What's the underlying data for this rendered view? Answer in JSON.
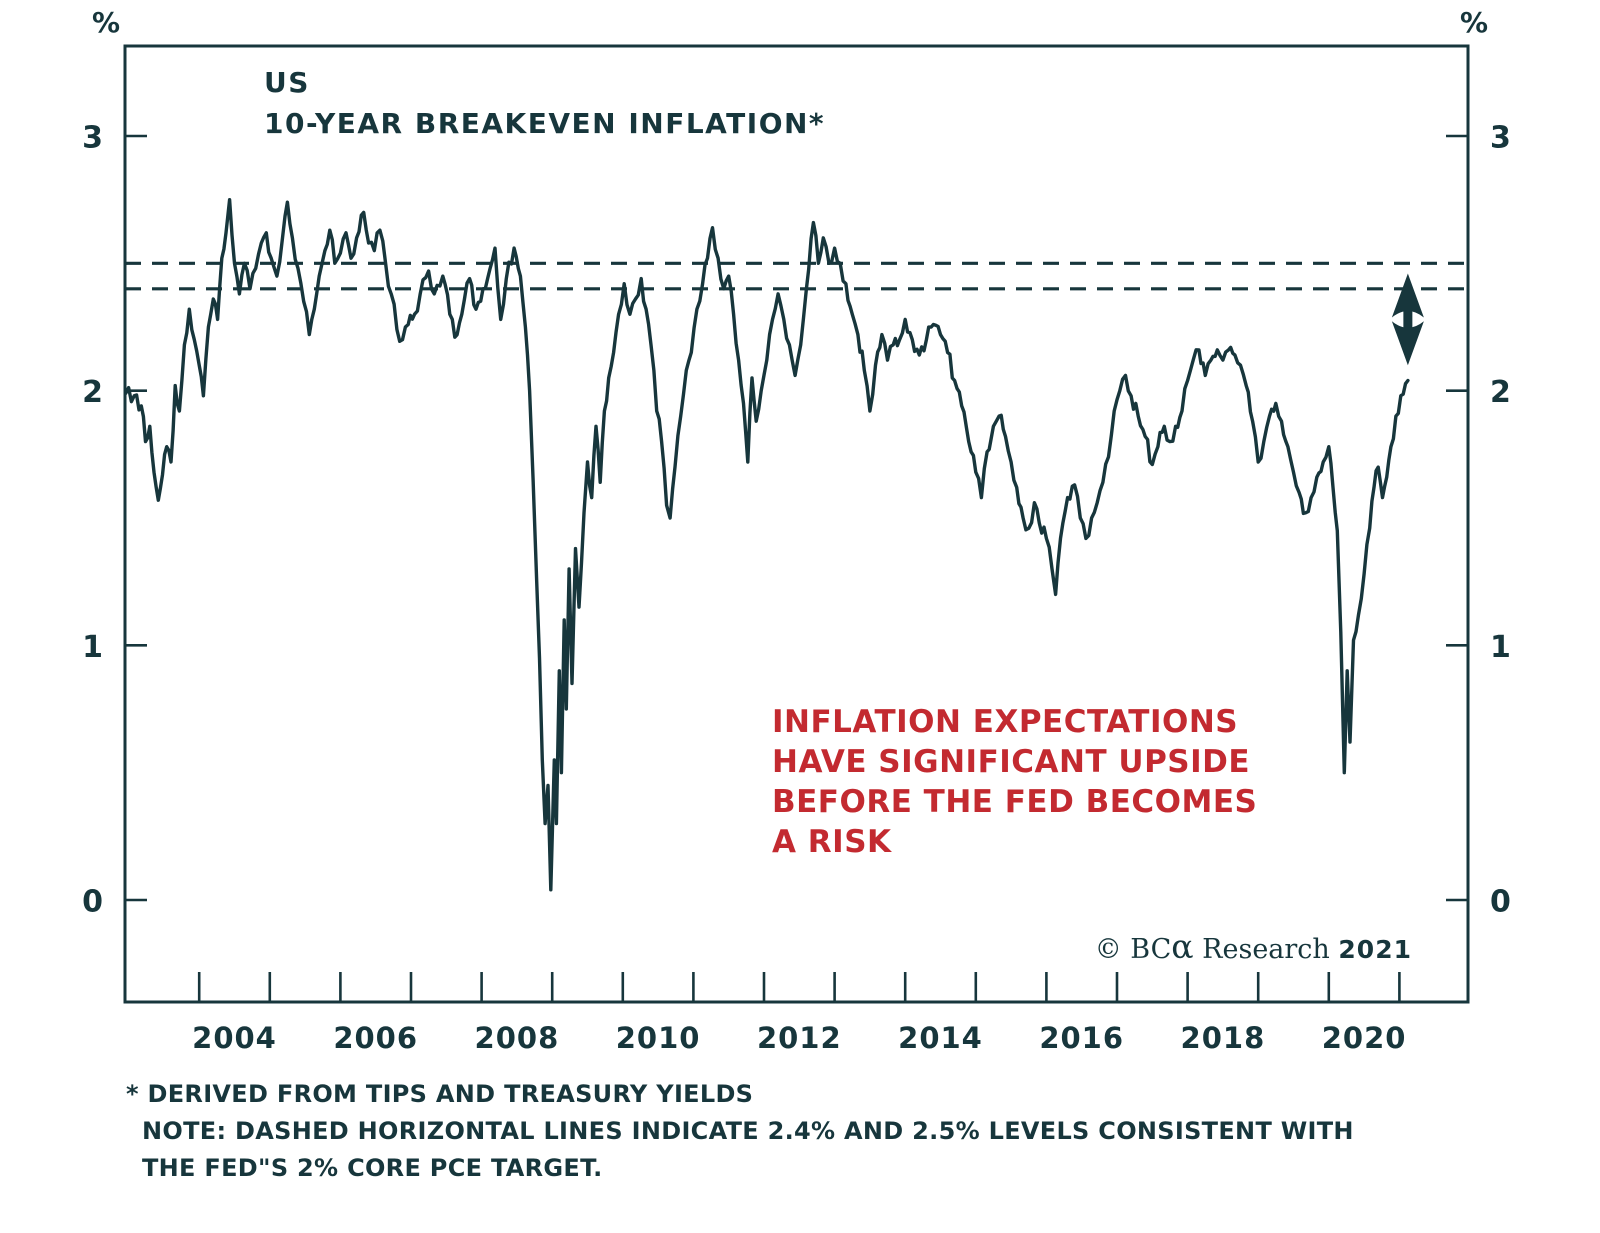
{
  "colors": {
    "line": "#17363c",
    "accent_red": "#c32a30",
    "background": "#ffffff"
  },
  "title": {
    "line1": "US",
    "line2": "10-YEAR BREAKEVEN INFLATION*"
  },
  "axis": {
    "unit_label": "%"
  },
  "annotations": {
    "note_lines": [
      "INFLATION EXPECTATIONS",
      "HAVE SIGNIFICANT UPSIDE",
      "BEFORE THE FED BECOMES",
      "A RISK"
    ],
    "credit": {
      "copyright": "© BC",
      "alpha": "α",
      "middle": " Research ",
      "year": "2021"
    },
    "footnote1": "* DERIVED FROM TIPS AND TREASURY YIELDS",
    "footnote2": "NOTE: DASHED HORIZONTAL LINES INDICATE 2.4% AND 2.5% LEVELS CONSISTENT WITH",
    "footnote3": "THE FED\"S 2% CORE PCE TARGET."
  },
  "chart_data": {
    "type": "line",
    "title": "US 10-YEAR BREAKEVEN INFLATION*",
    "xlabel": "",
    "ylabel": "%",
    "ylim": [
      -0.4,
      3.4
    ],
    "xlim": [
      2002.95,
      2021.95
    ],
    "grid": false,
    "legend": "none",
    "y_ticks": [
      0,
      1,
      2,
      3
    ],
    "x_tick_years": [
      2004,
      2005,
      2006,
      2007,
      2008,
      2009,
      2010,
      2011,
      2012,
      2013,
      2014,
      2015,
      2016,
      2017,
      2018,
      2019,
      2020,
      2021
    ],
    "x_labels": [
      2004,
      2006,
      2008,
      2010,
      2012,
      2014,
      2016,
      2018,
      2020
    ],
    "reference_lines": {
      "values": [
        2.4,
        2.5
      ],
      "style": "dashed",
      "meaning": "2.4% and 2.5% levels consistent with the Fed's 2% core PCE target"
    },
    "arrow": {
      "x_year": 2021.12,
      "from_value": 2.1,
      "to_value": 2.46,
      "type": "double-headed-vertical"
    },
    "series": [
      {
        "name": "US 10-Year Breakeven Inflation (derived from TIPS and Treasury yields)",
        "points": [
          [
            2002.96,
            1.99
          ],
          [
            2003.08,
            1.98
          ],
          [
            2003.18,
            1.94
          ],
          [
            2003.24,
            1.8
          ],
          [
            2003.3,
            1.86
          ],
          [
            2003.36,
            1.68
          ],
          [
            2003.42,
            1.57
          ],
          [
            2003.48,
            1.67
          ],
          [
            2003.54,
            1.78
          ],
          [
            2003.6,
            1.72
          ],
          [
            2003.66,
            2.02
          ],
          [
            2003.72,
            1.92
          ],
          [
            2003.79,
            2.18
          ],
          [
            2003.86,
            2.32
          ],
          [
            2003.93,
            2.2
          ],
          [
            2004.0,
            2.1
          ],
          [
            2004.06,
            1.98
          ],
          [
            2004.13,
            2.25
          ],
          [
            2004.2,
            2.36
          ],
          [
            2004.26,
            2.28
          ],
          [
            2004.32,
            2.52
          ],
          [
            2004.38,
            2.62
          ],
          [
            2004.43,
            2.75
          ],
          [
            2004.5,
            2.5
          ],
          [
            2004.57,
            2.38
          ],
          [
            2004.64,
            2.5
          ],
          [
            2004.72,
            2.4
          ],
          [
            2004.8,
            2.48
          ],
          [
            2004.88,
            2.58
          ],
          [
            2004.95,
            2.62
          ],
          [
            2005.02,
            2.52
          ],
          [
            2005.1,
            2.45
          ],
          [
            2005.18,
            2.6
          ],
          [
            2005.25,
            2.74
          ],
          [
            2005.32,
            2.6
          ],
          [
            2005.4,
            2.48
          ],
          [
            2005.48,
            2.35
          ],
          [
            2005.56,
            2.22
          ],
          [
            2005.63,
            2.32
          ],
          [
            2005.7,
            2.45
          ],
          [
            2005.78,
            2.55
          ],
          [
            2005.85,
            2.63
          ],
          [
            2005.92,
            2.5
          ],
          [
            2006.0,
            2.54
          ],
          [
            2006.08,
            2.62
          ],
          [
            2006.15,
            2.52
          ],
          [
            2006.23,
            2.6
          ],
          [
            2006.33,
            2.7
          ],
          [
            2006.4,
            2.58
          ],
          [
            2006.48,
            2.55
          ],
          [
            2006.56,
            2.63
          ],
          [
            2006.64,
            2.5
          ],
          [
            2006.72,
            2.38
          ],
          [
            2006.8,
            2.24
          ],
          [
            2006.88,
            2.2
          ],
          [
            2006.96,
            2.26
          ],
          [
            2007.05,
            2.3
          ],
          [
            2007.13,
            2.38
          ],
          [
            2007.25,
            2.47
          ],
          [
            2007.33,
            2.38
          ],
          [
            2007.45,
            2.45
          ],
          [
            2007.55,
            2.3
          ],
          [
            2007.62,
            2.21
          ],
          [
            2007.72,
            2.3
          ],
          [
            2007.83,
            2.44
          ],
          [
            2007.92,
            2.32
          ],
          [
            2008.02,
            2.4
          ],
          [
            2008.12,
            2.48
          ],
          [
            2008.19,
            2.56
          ],
          [
            2008.27,
            2.28
          ],
          [
            2008.35,
            2.44
          ],
          [
            2008.46,
            2.56
          ],
          [
            2008.55,
            2.45
          ],
          [
            2008.62,
            2.25
          ],
          [
            2008.68,
            2.0
          ],
          [
            2008.73,
            1.65
          ],
          [
            2008.78,
            1.25
          ],
          [
            2008.82,
            0.95
          ],
          [
            2008.86,
            0.55
          ],
          [
            2008.9,
            0.3
          ],
          [
            2008.94,
            0.45
          ],
          [
            2008.98,
            0.04
          ],
          [
            2009.03,
            0.55
          ],
          [
            2009.06,
            0.3
          ],
          [
            2009.1,
            0.9
          ],
          [
            2009.13,
            0.5
          ],
          [
            2009.17,
            1.1
          ],
          [
            2009.2,
            0.75
          ],
          [
            2009.24,
            1.3
          ],
          [
            2009.28,
            0.85
          ],
          [
            2009.33,
            1.38
          ],
          [
            2009.38,
            1.15
          ],
          [
            2009.45,
            1.52
          ],
          [
            2009.5,
            1.72
          ],
          [
            2009.56,
            1.58
          ],
          [
            2009.62,
            1.86
          ],
          [
            2009.68,
            1.64
          ],
          [
            2009.74,
            1.92
          ],
          [
            2009.8,
            2.05
          ],
          [
            2009.87,
            2.15
          ],
          [
            2009.94,
            2.3
          ],
          [
            2010.02,
            2.42
          ],
          [
            2010.1,
            2.3
          ],
          [
            2010.18,
            2.36
          ],
          [
            2010.26,
            2.44
          ],
          [
            2010.33,
            2.32
          ],
          [
            2010.4,
            2.18
          ],
          [
            2010.48,
            1.92
          ],
          [
            2010.55,
            1.8
          ],
          [
            2010.62,
            1.55
          ],
          [
            2010.67,
            1.5
          ],
          [
            2010.74,
            1.7
          ],
          [
            2010.82,
            1.9
          ],
          [
            2010.9,
            2.08
          ],
          [
            2010.97,
            2.15
          ],
          [
            2011.05,
            2.32
          ],
          [
            2011.13,
            2.42
          ],
          [
            2011.2,
            2.52
          ],
          [
            2011.27,
            2.64
          ],
          [
            2011.35,
            2.52
          ],
          [
            2011.43,
            2.4
          ],
          [
            2011.5,
            2.45
          ],
          [
            2011.57,
            2.3
          ],
          [
            2011.64,
            2.12
          ],
          [
            2011.71,
            1.95
          ],
          [
            2011.77,
            1.72
          ],
          [
            2011.83,
            2.05
          ],
          [
            2011.89,
            1.88
          ],
          [
            2011.96,
            2.0
          ],
          [
            2012.04,
            2.12
          ],
          [
            2012.12,
            2.28
          ],
          [
            2012.2,
            2.38
          ],
          [
            2012.28,
            2.28
          ],
          [
            2012.36,
            2.18
          ],
          [
            2012.44,
            2.06
          ],
          [
            2012.52,
            2.18
          ],
          [
            2012.6,
            2.4
          ],
          [
            2012.7,
            2.66
          ],
          [
            2012.77,
            2.5
          ],
          [
            2012.84,
            2.6
          ],
          [
            2012.92,
            2.5
          ],
          [
            2013.0,
            2.56
          ],
          [
            2013.08,
            2.5
          ],
          [
            2013.16,
            2.42
          ],
          [
            2013.25,
            2.3
          ],
          [
            2013.33,
            2.22
          ],
          [
            2013.42,
            2.08
          ],
          [
            2013.5,
            1.92
          ],
          [
            2013.58,
            2.1
          ],
          [
            2013.67,
            2.22
          ],
          [
            2013.75,
            2.12
          ],
          [
            2013.83,
            2.18
          ],
          [
            2013.92,
            2.2
          ],
          [
            2014.0,
            2.28
          ],
          [
            2014.1,
            2.2
          ],
          [
            2014.2,
            2.14
          ],
          [
            2014.3,
            2.2
          ],
          [
            2014.4,
            2.26
          ],
          [
            2014.5,
            2.22
          ],
          [
            2014.6,
            2.15
          ],
          [
            2014.7,
            2.04
          ],
          [
            2014.8,
            1.94
          ],
          [
            2014.9,
            1.8
          ],
          [
            2015.0,
            1.68
          ],
          [
            2015.08,
            1.58
          ],
          [
            2015.16,
            1.76
          ],
          [
            2015.25,
            1.86
          ],
          [
            2015.33,
            1.9
          ],
          [
            2015.42,
            1.82
          ],
          [
            2015.5,
            1.72
          ],
          [
            2015.58,
            1.62
          ],
          [
            2015.67,
            1.5
          ],
          [
            2015.75,
            1.46
          ],
          [
            2015.83,
            1.56
          ],
          [
            2015.9,
            1.48
          ],
          [
            2016.0,
            1.42
          ],
          [
            2016.08,
            1.3
          ],
          [
            2016.13,
            1.2
          ],
          [
            2016.2,
            1.42
          ],
          [
            2016.3,
            1.58
          ],
          [
            2016.4,
            1.63
          ],
          [
            2016.48,
            1.5
          ],
          [
            2016.56,
            1.42
          ],
          [
            2016.64,
            1.5
          ],
          [
            2016.72,
            1.56
          ],
          [
            2016.8,
            1.64
          ],
          [
            2016.88,
            1.74
          ],
          [
            2016.96,
            1.92
          ],
          [
            2017.04,
            2.0
          ],
          [
            2017.12,
            2.06
          ],
          [
            2017.2,
            1.98
          ],
          [
            2017.3,
            1.9
          ],
          [
            2017.4,
            1.82
          ],
          [
            2017.5,
            1.71
          ],
          [
            2017.58,
            1.78
          ],
          [
            2017.67,
            1.86
          ],
          [
            2017.75,
            1.8
          ],
          [
            2017.83,
            1.86
          ],
          [
            2017.92,
            1.92
          ],
          [
            2018.0,
            2.04
          ],
          [
            2018.08,
            2.12
          ],
          [
            2018.16,
            2.16
          ],
          [
            2018.25,
            2.06
          ],
          [
            2018.33,
            2.12
          ],
          [
            2018.42,
            2.16
          ],
          [
            2018.5,
            2.12
          ],
          [
            2018.58,
            2.16
          ],
          [
            2018.67,
            2.14
          ],
          [
            2018.75,
            2.1
          ],
          [
            2018.83,
            2.02
          ],
          [
            2018.92,
            1.88
          ],
          [
            2019.0,
            1.72
          ],
          [
            2019.08,
            1.8
          ],
          [
            2019.16,
            1.9
          ],
          [
            2019.25,
            1.95
          ],
          [
            2019.33,
            1.88
          ],
          [
            2019.42,
            1.78
          ],
          [
            2019.5,
            1.68
          ],
          [
            2019.58,
            1.6
          ],
          [
            2019.67,
            1.52
          ],
          [
            2019.75,
            1.58
          ],
          [
            2019.83,
            1.66
          ],
          [
            2019.92,
            1.72
          ],
          [
            2020.0,
            1.78
          ],
          [
            2020.06,
            1.62
          ],
          [
            2020.12,
            1.45
          ],
          [
            2020.17,
            1.05
          ],
          [
            2020.22,
            0.5
          ],
          [
            2020.26,
            0.9
          ],
          [
            2020.3,
            0.62
          ],
          [
            2020.35,
            1.02
          ],
          [
            2020.42,
            1.12
          ],
          [
            2020.5,
            1.28
          ],
          [
            2020.58,
            1.46
          ],
          [
            2020.64,
            1.62
          ],
          [
            2020.7,
            1.7
          ],
          [
            2020.76,
            1.58
          ],
          [
            2020.82,
            1.66
          ],
          [
            2020.88,
            1.78
          ],
          [
            2020.95,
            1.9
          ],
          [
            2021.02,
            1.98
          ],
          [
            2021.12,
            2.04
          ]
        ]
      }
    ]
  }
}
